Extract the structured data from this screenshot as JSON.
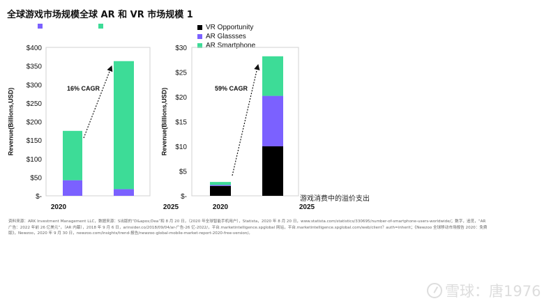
{
  "title": "全球游戏市场规模全球 AR 和 VR 市场规模 1",
  "colors": {
    "vr": "#000000",
    "ar_glasses": "#7b61ff",
    "ar_smartphone": "#3ddc97",
    "frame": "#d0d0d0"
  },
  "left_legend_colors": [
    "#7b61ff",
    "#3ddc97"
  ],
  "note": "游戏消费中的溢价支出",
  "source": "资料来源：ARK Investment Management LLC，数据来源：S出版的“D&apos;Dea”和 8 月 20 日，（2020 年全球智能手机用户），Statista，2020 年 8 月 20 日，www.statista.com/statistics/330695/number-of-smartphone-users-worldwide/；数字，追觅，“AR 广告：2022 年前 26 亿美元”，（AR 内幕），2018 年 9 月 6 日，arinsider.co/2018/09/04/ar-广告-26 亿-2022/，平台.marketintelligence.spglobal 网站，平台.marketintelligence.spglobal.com/web/client？auth=inherit；《Newzoo 全球移动市场报告 2020：免费版》，Newzoo，2020 年 9 月 30 日，newzoo.com/insights/trend-报告/newzoo-global-mobile-market-report-2020-free-version/。",
  "watermark": "雪球：唐1976",
  "chart_data": [
    {
      "type": "bar",
      "stacked": true,
      "title": "",
      "xlabel": "",
      "ylabel": "Revenue(Billions,USD)",
      "categories": [
        "2020",
        "2025"
      ],
      "yticks": [
        "$-",
        "$50",
        "$100",
        "$150",
        "$200",
        "$250",
        "$300",
        "$350",
        "$400"
      ],
      "ylim": [
        0,
        400
      ],
      "series": [
        {
          "values": [
            42,
            18
          ],
          "color": "#7b61ff"
        },
        {
          "values": [
            133,
            345
          ],
          "color": "#3ddc97"
        }
      ],
      "annotation": "16% CAGR",
      "grid": false
    },
    {
      "type": "bar",
      "stacked": true,
      "title": "",
      "xlabel": "",
      "ylabel": "Revenue(Billions,USD)",
      "categories": [
        "2020",
        "2025"
      ],
      "yticks": [
        "$-",
        "$5",
        "$10",
        "$15",
        "$20",
        "$25",
        "$30"
      ],
      "ylim": [
        0,
        30
      ],
      "series": [
        {
          "name": "VR Opportunity",
          "values": [
            2.0,
            10.0
          ],
          "color": "#000000"
        },
        {
          "name": "AR Glassses",
          "values": [
            0.2,
            10.2
          ],
          "color": "#7b61ff"
        },
        {
          "name": "AR Smartphone",
          "values": [
            0.6,
            8.0
          ],
          "color": "#3ddc97"
        }
      ],
      "annotation": "59% CAGR",
      "legend": "top-right",
      "grid": false
    }
  ]
}
